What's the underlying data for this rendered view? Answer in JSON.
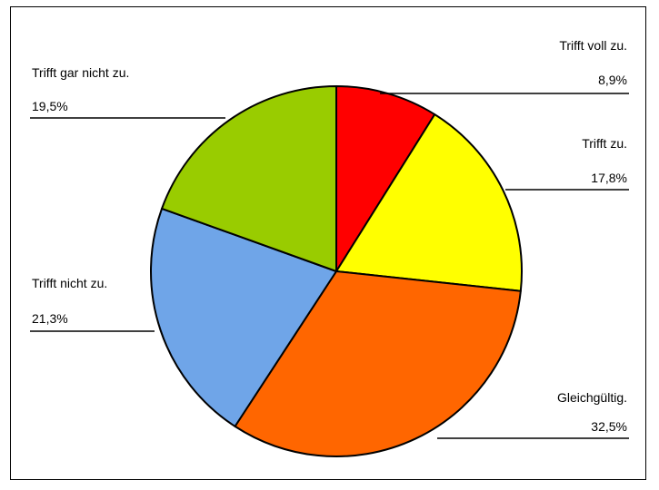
{
  "chart_data": {
    "type": "pie",
    "title": "",
    "start_angle_deg": 0,
    "direction": "clockwise",
    "slices": [
      {
        "label": "Trifft voll zu.",
        "value": 8.9,
        "value_text": "8,9%",
        "color": "#ff0000"
      },
      {
        "label": "Trifft zu.",
        "value": 17.8,
        "value_text": "17,8%",
        "color": "#ffff00"
      },
      {
        "label": "Gleichgültig.",
        "value": 32.5,
        "value_text": "32,5%",
        "color": "#ff6600"
      },
      {
        "label": "Trifft nicht zu.",
        "value": 21.3,
        "value_text": "21,3%",
        "color": "#6fa5e8"
      },
      {
        "label": "Trifft gar nicht zu.",
        "value": 19.5,
        "value_text": "19,5%",
        "color": "#99cc00"
      }
    ]
  }
}
